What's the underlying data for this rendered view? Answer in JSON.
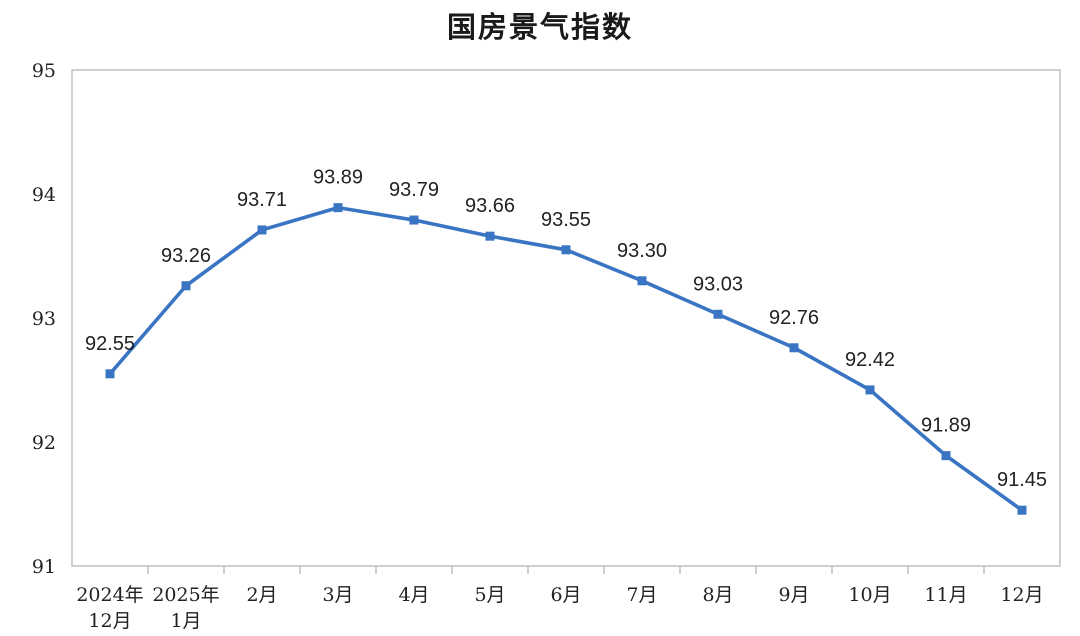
{
  "chart_data": {
    "type": "line",
    "title": "国房景气指数",
    "xlabel": "",
    "ylabel": "",
    "ylim": [
      91,
      95
    ],
    "yticks": [
      "91",
      "92",
      "93",
      "94",
      "95"
    ],
    "grid": false,
    "legend": "none",
    "categories": [
      [
        "2024年",
        "12月"
      ],
      [
        "2025年",
        "1月"
      ],
      [
        "2月"
      ],
      [
        "3月"
      ],
      [
        "4月"
      ],
      [
        "5月"
      ],
      [
        "6月"
      ],
      [
        "7月"
      ],
      [
        "8月"
      ],
      [
        "9月"
      ],
      [
        "10月"
      ],
      [
        "11月"
      ],
      [
        "12月"
      ]
    ],
    "values": [
      92.55,
      93.26,
      93.71,
      93.89,
      93.79,
      93.66,
      93.55,
      93.3,
      93.03,
      92.76,
      92.42,
      91.89,
      91.45
    ],
    "value_labels": [
      "92.55",
      "93.26",
      "93.71",
      "93.89",
      "93.79",
      "93.66",
      "93.55",
      "93.30",
      "93.03",
      "92.76",
      "92.42",
      "91.89",
      "91.45"
    ],
    "line_color": "#3a75c4",
    "axis_color": "#b0b0b0"
  }
}
